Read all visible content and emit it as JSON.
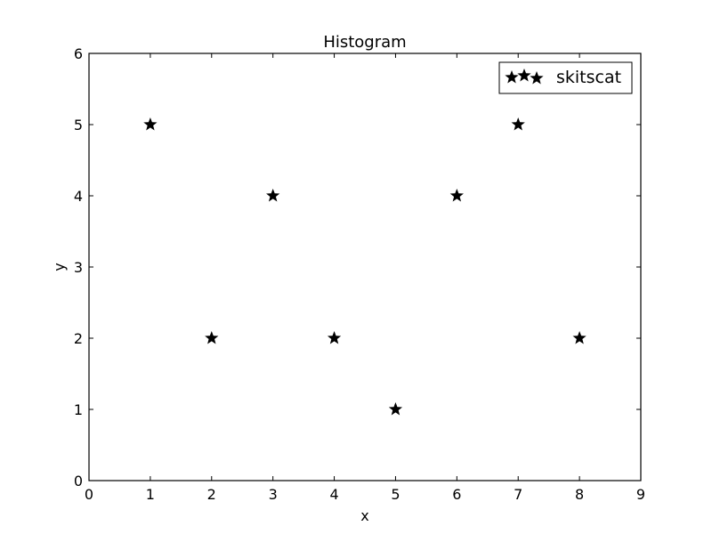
{
  "chart_data": {
    "type": "scatter",
    "title": "Histogram",
    "xlabel": "x",
    "ylabel": "y",
    "xlim": [
      0,
      9
    ],
    "ylim": [
      0,
      6
    ],
    "xticks": [
      "0",
      "1",
      "2",
      "3",
      "4",
      "5",
      "6",
      "7",
      "8",
      "9"
    ],
    "yticks": [
      "0",
      "1",
      "2",
      "3",
      "4",
      "5",
      "6"
    ],
    "grid": false,
    "legend_position": "top-right",
    "marker": "star",
    "marker_color": "#000000",
    "series": [
      {
        "name": "skitscat",
        "points": [
          {
            "x": 1,
            "y": 5
          },
          {
            "x": 2,
            "y": 2
          },
          {
            "x": 3,
            "y": 4
          },
          {
            "x": 4,
            "y": 2
          },
          {
            "x": 5,
            "y": 1
          },
          {
            "x": 6,
            "y": 4
          },
          {
            "x": 7,
            "y": 5
          },
          {
            "x": 8,
            "y": 2
          }
        ]
      }
    ]
  }
}
